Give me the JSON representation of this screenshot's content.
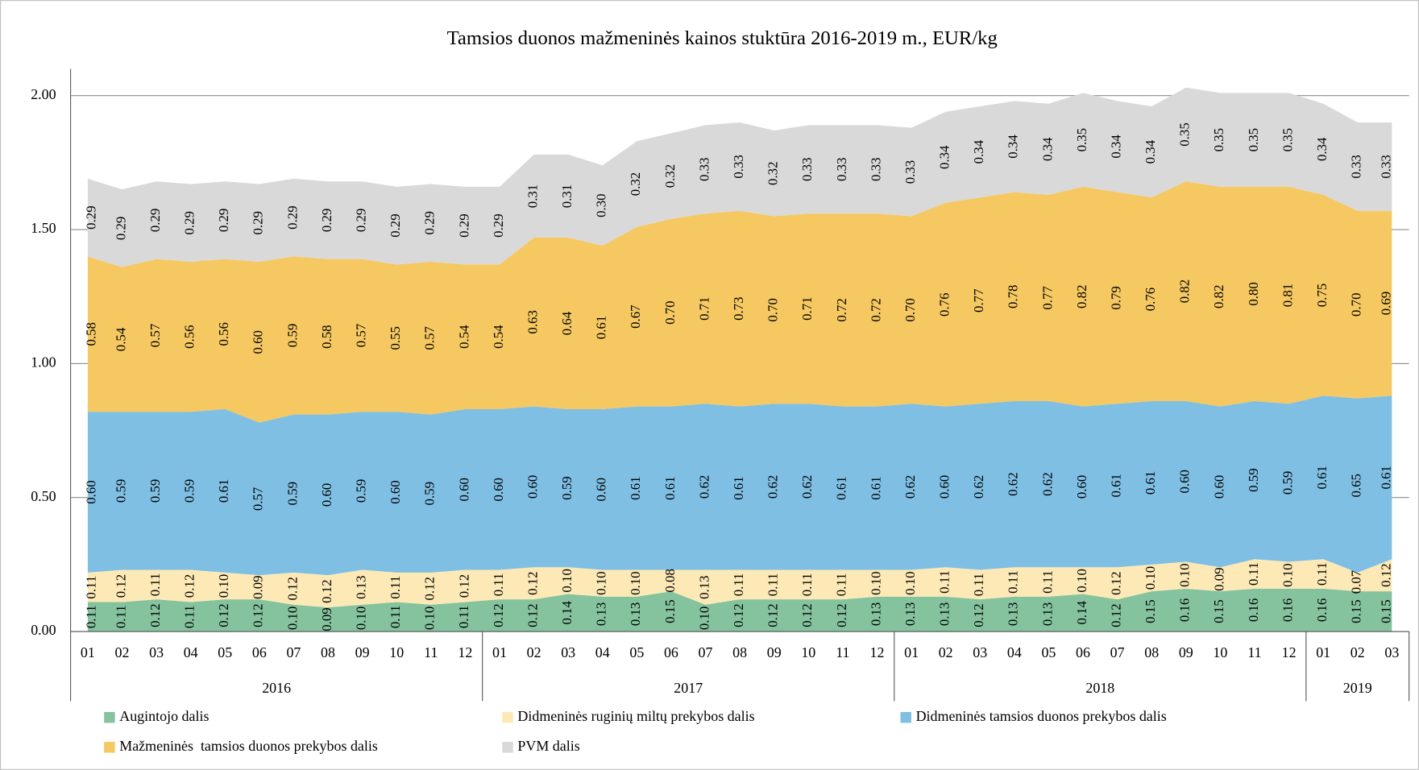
{
  "chart_data": {
    "type": "stacked_area",
    "title": "Tamsios duonos mažmeninės kainos stuktūra 2016-2019 m., EUR/kg",
    "groups": [
      {
        "label": "2016",
        "categories": [
          "01",
          "02",
          "03",
          "04",
          "05",
          "06",
          "07",
          "08",
          "09",
          "10",
          "11",
          "12"
        ]
      },
      {
        "label": "2017",
        "categories": [
          "01",
          "02",
          "03",
          "04",
          "05",
          "06",
          "07",
          "08",
          "09",
          "10",
          "11",
          "12"
        ]
      },
      {
        "label": "2018",
        "categories": [
          "01",
          "02",
          "03",
          "04",
          "05",
          "06",
          "07",
          "08",
          "09",
          "10",
          "11",
          "12"
        ]
      },
      {
        "label": "2019",
        "categories": [
          "01",
          "02",
          "03"
        ]
      }
    ],
    "ylim": [
      0,
      2.1
    ],
    "yticks": [
      {
        "value": 0,
        "label": "0.00"
      },
      {
        "value": 0.5,
        "label": "0.50"
      },
      {
        "value": 1,
        "label": "1.00"
      },
      {
        "value": 1.5,
        "label": "1.50"
      },
      {
        "value": 2,
        "label": "2.00"
      }
    ],
    "grid": true,
    "series": [
      {
        "name": "Augintojo dalis",
        "color": "#84c39e",
        "values": [
          0.11,
          0.11,
          0.12,
          0.11,
          0.12,
          0.12,
          0.1,
          0.09,
          0.1,
          0.11,
          0.1,
          0.11,
          0.12,
          0.12,
          0.14,
          0.13,
          0.13,
          0.15,
          0.1,
          0.12,
          0.12,
          0.12,
          0.12,
          0.13,
          0.13,
          0.13,
          0.12,
          0.13,
          0.13,
          0.14,
          0.12,
          0.15,
          0.16,
          0.15,
          0.16,
          0.16,
          0.16,
          0.15,
          0.15
        ],
        "value_labels": [
          "0.11",
          "0.11",
          "0.12",
          "0.11",
          "0.12",
          "0.12",
          "0.10",
          "0.09",
          "0.10",
          "0.11",
          "0.10",
          "0.11",
          "0.12",
          "0.12",
          "0.14",
          "0.13",
          "0.13",
          "0.15",
          "0.10",
          "0.12",
          "0.12",
          "0.12",
          "0.12",
          "0.13",
          "0.13",
          "0.13",
          "0.12",
          "0.13",
          "0.13",
          "0.14",
          "0.12",
          "0.15",
          "0.16",
          "0.15",
          "0.16",
          "0.16",
          "0.16",
          "0.15",
          "0.15"
        ]
      },
      {
        "name": "Didmeninės ruginių miltų prekybos dalis",
        "color": "#fde9b6",
        "values": [
          0.11,
          0.12,
          0.11,
          0.12,
          0.1,
          0.09,
          0.12,
          0.12,
          0.13,
          0.11,
          0.12,
          0.12,
          0.11,
          0.12,
          0.1,
          0.1,
          0.1,
          0.08,
          0.13,
          0.11,
          0.11,
          0.11,
          0.11,
          0.1,
          0.1,
          0.11,
          0.11,
          0.11,
          0.11,
          0.1,
          0.12,
          0.1,
          0.1,
          0.09,
          0.11,
          0.1,
          0.11,
          0.07,
          0.12
        ],
        "value_labels": [
          "0.11",
          "0.12",
          "0.11",
          "0.12",
          "0.10",
          "0.09",
          "0.12",
          "0.12",
          "0.13",
          "0.11",
          "0.12",
          "0.12",
          "0.11",
          "0.12",
          "0.10",
          "0.10",
          "0.10",
          "0.08",
          "0.13",
          "0.11",
          "0.11",
          "0.11",
          "0.11",
          "0.10",
          "0.10",
          "0.11",
          "0.11",
          "0.11",
          "0.11",
          "0.10",
          "0.12",
          "0.10",
          "0.10",
          "0.09",
          "0.11",
          "0.10",
          "0.11",
          "0.07",
          "0.12"
        ]
      },
      {
        "name": "Didmeninės tamsios duonos prekybos dalis",
        "color": "#7fbfe3",
        "values": [
          0.6,
          0.59,
          0.59,
          0.59,
          0.61,
          0.57,
          0.59,
          0.6,
          0.59,
          0.6,
          0.59,
          0.6,
          0.6,
          0.6,
          0.59,
          0.6,
          0.61,
          0.61,
          0.62,
          0.61,
          0.62,
          0.62,
          0.61,
          0.61,
          0.62,
          0.6,
          0.62,
          0.62,
          0.62,
          0.6,
          0.61,
          0.61,
          0.6,
          0.6,
          0.59,
          0.59,
          0.61,
          0.65,
          0.61
        ],
        "value_labels": [
          "0.60",
          "0.59",
          "0.59",
          "0.59",
          "0.61",
          "0.57",
          "0.59",
          "0.60",
          "0.59",
          "0.60",
          "0.59",
          "0.60",
          "0.60",
          "0.60",
          "0.59",
          "0.60",
          "0.61",
          "0.61",
          "0.62",
          "0.61",
          "0.62",
          "0.62",
          "0.61",
          "0.61",
          "0.62",
          "0.60",
          "0.62",
          "0.62",
          "0.62",
          "0.60",
          "0.61",
          "0.61",
          "0.60",
          "0.60",
          "0.59",
          "0.59",
          "0.61",
          "0.65",
          "0.61"
        ]
      },
      {
        "name": "Mažmeninės  tamsios duonos prekybos dalis",
        "color": "#f5c862",
        "values": [
          0.58,
          0.54,
          0.57,
          0.56,
          0.56,
          0.6,
          0.59,
          0.58,
          0.57,
          0.55,
          0.57,
          0.54,
          0.54,
          0.63,
          0.64,
          0.61,
          0.67,
          0.7,
          0.71,
          0.73,
          0.7,
          0.71,
          0.72,
          0.72,
          0.7,
          0.76,
          0.77,
          0.78,
          0.77,
          0.82,
          0.79,
          0.76,
          0.82,
          0.82,
          0.8,
          0.81,
          0.75,
          0.7,
          0.69
        ],
        "value_labels": [
          "0.58",
          "0.54",
          "0.57",
          "0.56",
          "0.56",
          "0.60",
          "0.59",
          "0.58",
          "0.57",
          "0.55",
          "0.57",
          "0.54",
          "0.54",
          "0.63",
          "0.64",
          "0.61",
          "0.67",
          "0.70",
          "0.71",
          "0.73",
          "0.70",
          "0.71",
          "0.72",
          "0.72",
          "0.70",
          "0.76",
          "0.77",
          "0.78",
          "0.77",
          "0.82",
          "0.79",
          "0.76",
          "0.82",
          "0.82",
          "0.80",
          "0.81",
          "0.75",
          "0.70",
          "0.69"
        ]
      },
      {
        "name": "PVM dalis",
        "color": "#d9d9d9",
        "values": [
          0.29,
          0.29,
          0.29,
          0.29,
          0.29,
          0.29,
          0.29,
          0.29,
          0.29,
          0.29,
          0.29,
          0.29,
          0.29,
          0.31,
          0.31,
          0.3,
          0.32,
          0.32,
          0.33,
          0.33,
          0.32,
          0.33,
          0.33,
          0.33,
          0.33,
          0.34,
          0.34,
          0.34,
          0.34,
          0.35,
          0.34,
          0.34,
          0.35,
          0.35,
          0.35,
          0.35,
          0.34,
          0.33,
          0.33
        ],
        "value_labels": [
          "0.29",
          "0.29",
          "0.29",
          "0.29",
          "0.29",
          "0.29",
          "0.29",
          "0.29",
          "0.29",
          "0.29",
          "0.29",
          "0.29",
          "0.29",
          "0.31",
          "0.31",
          "0.30",
          "0.32",
          "0.32",
          "0.33",
          "0.33",
          "0.32",
          "0.33",
          "0.33",
          "0.33",
          "0.33",
          "0.34",
          "0.34",
          "0.34",
          "0.34",
          "0.35",
          "0.34",
          "0.34",
          "0.35",
          "0.35",
          "0.35",
          "0.35",
          "0.34",
          "0.33",
          "0.33"
        ]
      }
    ]
  }
}
